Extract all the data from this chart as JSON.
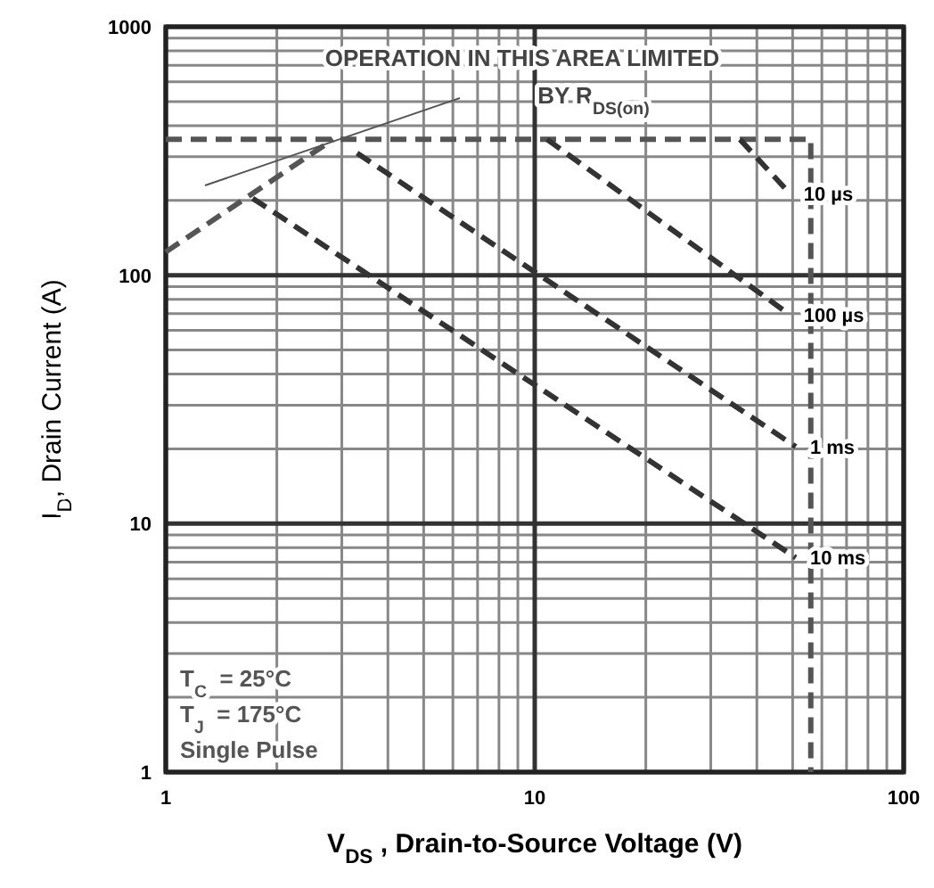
{
  "chart_data": {
    "type": "line",
    "xlabel": "V$_{DS}$ , Drain-to-Source Voltage (V)",
    "ylabel": "I$_{D}$, Drain Current (A)",
    "log": "xy",
    "xlim": [
      1,
      100
    ],
    "ylim": [
      1,
      1000
    ],
    "xticks": [
      1,
      10,
      100
    ],
    "yticks": [
      1,
      10,
      100,
      1000
    ],
    "grid": true,
    "legend": false,
    "line_style": "dashed",
    "marker": "none",
    "annotations": [
      "OPERATION IN THIS AREA LIMITED",
      "BY R$_{DS(on)}$",
      "T$_{C}$  = 25°C",
      "T$_{J}$  = 175°C",
      "Single Pulse"
    ],
    "series": [
      {
        "color": "#555555",
        "x": [
          1,
          2.84
        ],
        "values": [
          124,
          352
        ]
      },
      {
        "color": "#555555",
        "x": [
          1,
          56,
          56
        ],
        "values": [
          352,
          352,
          1
        ]
      },
      {
        "name": "10 µs",
        "color": "#333333",
        "x": [
          36,
          49
        ],
        "values": [
          352,
          214
        ]
      },
      {
        "name": "100 µs",
        "color": "#333333",
        "x": [
          10.8,
          49
        ],
        "values": [
          352,
          69.5
        ]
      },
      {
        "name": "1 ms",
        "color": "#333333",
        "x": [
          3.3,
          51
        ],
        "values": [
          310,
          20.4
        ]
      },
      {
        "name": "10 ms",
        "color": "#333333",
        "x": [
          1.72,
          51
        ],
        "values": [
          204,
          7.3
        ]
      }
    ]
  }
}
